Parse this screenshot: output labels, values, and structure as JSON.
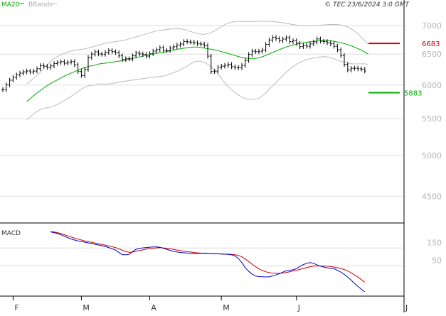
{
  "header": {
    "legend": [
      {
        "label": "MA20",
        "color": "#00aa00"
      },
      {
        "label": "BBands",
        "color": "#bbbbbb"
      }
    ],
    "copyright": "© TEC 23/6/2024 3:0 GMT"
  },
  "chart_data": [
    {
      "type": "bar",
      "subtype": "ohlc",
      "ylim": [
        4200,
        7300
      ],
      "y_scale": "log",
      "y_ticks": [
        {
          "value": 7000,
          "label": "7000"
        },
        {
          "value": 6500,
          "label": "6500"
        },
        {
          "value": 6000,
          "label": "6000"
        },
        {
          "value": 5500,
          "label": "5500"
        },
        {
          "value": 5000,
          "label": "5000"
        },
        {
          "value": 4500,
          "label": "4500"
        }
      ],
      "x_ticks": [
        "F",
        "M",
        "A",
        "M",
        "J",
        "J"
      ],
      "x_tick_index": [
        3,
        23,
        43,
        64,
        86,
        107
      ],
      "num_bars": 107,
      "series": [
        {
          "name": "MA20",
          "color": "#00aa00"
        },
        {
          "name": "BBands",
          "color": "#bbbbbb"
        }
      ],
      "close": [
        5931,
        6003,
        6076,
        6121,
        6160,
        6188,
        6209,
        6222,
        6207,
        6221,
        6258,
        6310,
        6300,
        6280,
        6305,
        6343,
        6360,
        6374,
        6350,
        6366,
        6374,
        6324,
        6214,
        6150,
        6249,
        6443,
        6500,
        6538,
        6503,
        6498,
        6530,
        6559,
        6542,
        6526,
        6471,
        6410,
        6423,
        6419,
        6471,
        6518,
        6503,
        6496,
        6466,
        6506,
        6551,
        6576,
        6608,
        6561,
        6562,
        6602,
        6625,
        6654,
        6672,
        6715,
        6709,
        6704,
        6694,
        6675,
        6670,
        6648,
        6466,
        6213,
        6220,
        6283,
        6300,
        6314,
        6329,
        6291,
        6278,
        6276,
        6313,
        6395,
        6494,
        6549,
        6540,
        6549,
        6570,
        6665,
        6741,
        6787,
        6766,
        6729,
        6758,
        6784,
        6714,
        6728,
        6686,
        6627,
        6652,
        6634,
        6674,
        6707,
        6760,
        6720,
        6714,
        6694,
        6676,
        6633,
        6574,
        6476,
        6329,
        6239,
        6265,
        6267,
        6258,
        6252,
        6222
      ],
      "ma20": [
        5752,
        5793,
        5837,
        5878,
        5917,
        5955,
        5991,
        6024,
        6054,
        6082,
        6111,
        6139,
        6164,
        6189,
        6212,
        6236,
        6259,
        6278,
        6294,
        6307,
        6318,
        6335,
        6344,
        6349,
        6357,
        6365,
        6375,
        6383,
        6393,
        6404,
        6416,
        6428,
        6440,
        6452,
        6465,
        6478,
        6491,
        6504,
        6514,
        6522,
        6531,
        6541,
        6555,
        6568,
        6580,
        6591,
        6600,
        6608,
        6614,
        6620,
        6620,
        6612,
        6602,
        6593,
        6582,
        6571,
        6559,
        6542,
        6527,
        6510,
        6493,
        6476,
        6460,
        6444,
        6433,
        6428,
        6428,
        6429,
        6438,
        6456,
        6479,
        6504,
        6528,
        6553,
        6576,
        6599,
        6620,
        6639,
        6655,
        6669,
        6681,
        6692,
        6702,
        6711,
        6717,
        6725,
        6730,
        6734,
        6734,
        6731,
        6720,
        6707,
        6694,
        6679,
        6662,
        6641,
        6618,
        6593,
        6566,
        6535,
        6500
      ],
      "bb_upper": [
        6017,
        6058,
        6104,
        6151,
        6202,
        6262,
        6322,
        6379,
        6425,
        6458,
        6488,
        6514,
        6534,
        6550,
        6562,
        6571,
        6580,
        6590,
        6603,
        6618,
        6636,
        6652,
        6669,
        6684,
        6696,
        6706,
        6714,
        6722,
        6732,
        6745,
        6761,
        6779,
        6796,
        6813,
        6830,
        6848,
        6867,
        6885,
        6900,
        6910,
        6918,
        6927,
        6935,
        6940,
        6943,
        6940,
        6929,
        6912,
        6892,
        6873,
        6856,
        6844,
        6843,
        6853,
        6873,
        6904,
        6941,
        6979,
        7015,
        7042,
        7059,
        7068,
        7072,
        7072,
        7071,
        7071,
        7072,
        7074,
        7076,
        7077,
        7077,
        7075,
        7072,
        7066,
        7059,
        7050,
        7039,
        7027,
        7016,
        7007,
        7000,
        6997,
        6997,
        6999,
        7001,
        7003,
        7006,
        7010,
        7014,
        7017,
        7018,
        7016,
        7008,
        6994,
        6972,
        6941,
        6899,
        6849,
        6793,
        6732,
        6668
      ],
      "bb_lower": [
        5487,
        5528,
        5570,
        5605,
        5632,
        5648,
        5660,
        5669,
        5683,
        5706,
        5734,
        5764,
        5794,
        5828,
        5862,
        5901,
        5938,
        5966,
        5985,
        5996,
        6000,
        6018,
        6019,
        6014,
        6018,
        6024,
        6036,
        6044,
        6054,
        6063,
        6071,
        6077,
        6084,
        6091,
        6100,
        6108,
        6115,
        6123,
        6128,
        6134,
        6144,
        6155,
        6175,
        6196,
        6217,
        6242,
        6271,
        6304,
        6336,
        6367,
        6384,
        6380,
        6361,
        6333,
        6291,
        6238,
        6177,
        6105,
        6039,
        5978,
        5927,
        5884,
        5848,
        5816,
        5795,
        5785,
        5784,
        5784,
        5800,
        5835,
        5881,
        5933,
        5984,
        6040,
        6093,
        6148,
        6201,
        6251,
        6294,
        6331,
        6362,
        6387,
        6407,
        6423,
        6433,
        6447,
        6454,
        6458,
        6454,
        6445,
        6422,
        6398,
        6380,
        6364,
        6352,
        6341,
        6337,
        6337,
        6339,
        6338,
        6332
      ],
      "levels": [
        {
          "label": "6683",
          "value": 6683,
          "color": "#cc0000"
        },
        {
          "label": "5883",
          "value": 5883,
          "color": "#00aa00"
        }
      ]
    },
    {
      "type": "line",
      "title": "MACD",
      "ylim": [
        -150,
        250
      ],
      "y_ticks": [
        {
          "value": 150,
          "label": "150"
        },
        {
          "value": 50,
          "label": "50"
        }
      ],
      "series": [
        {
          "name": "MACD",
          "color": "#0000cc"
        },
        {
          "name": "Signal",
          "color": "#cc0000"
        }
      ],
      "macd": [
        208,
        204,
        199,
        192,
        184,
        176,
        169,
        163,
        158,
        154,
        151,
        147,
        143,
        139,
        135,
        131,
        127,
        121,
        114,
        107,
        93,
        81,
        81,
        83,
        98,
        111,
        116,
        119,
        121,
        123,
        124,
        124,
        122,
        117,
        111,
        105,
        100,
        96,
        93,
        92,
        90,
        88,
        88,
        88,
        89,
        90,
        89,
        87,
        86,
        86,
        85,
        84,
        83,
        80,
        74,
        59,
        37,
        9,
        -12,
        -27,
        -38,
        -41,
        -42,
        -43,
        -42,
        -38,
        -32,
        -25,
        -16,
        -9,
        -6,
        -3,
        3,
        16,
        26,
        33,
        37,
        33,
        24,
        17,
        12,
        8,
        5,
        3,
        -6,
        -16,
        -29,
        -44,
        -61,
        -79,
        -96,
        -112,
        -126
      ],
      "signal": [
        210,
        208,
        204,
        199,
        192,
        186,
        180,
        173,
        168,
        163,
        158,
        154,
        150,
        146,
        142,
        138,
        134,
        130,
        126,
        121,
        114,
        106,
        99,
        94,
        96,
        100,
        104,
        108,
        112,
        115,
        117,
        119,
        120,
        119,
        117,
        114,
        111,
        107,
        104,
        101,
        98,
        96,
        93,
        91,
        90,
        89,
        88,
        87,
        86,
        86,
        85,
        84,
        84,
        83,
        81,
        77,
        69,
        57,
        43,
        28,
        14,
        2,
        -7,
        -14,
        -19,
        -22,
        -23,
        -23,
        -21,
        -18,
        -14,
        -10,
        -6,
        -1,
        4,
        9,
        14,
        17,
        18,
        18,
        18,
        17,
        15,
        12,
        9,
        4,
        -2,
        -10,
        -20,
        -32,
        -44,
        -58,
        -72
      ]
    }
  ]
}
